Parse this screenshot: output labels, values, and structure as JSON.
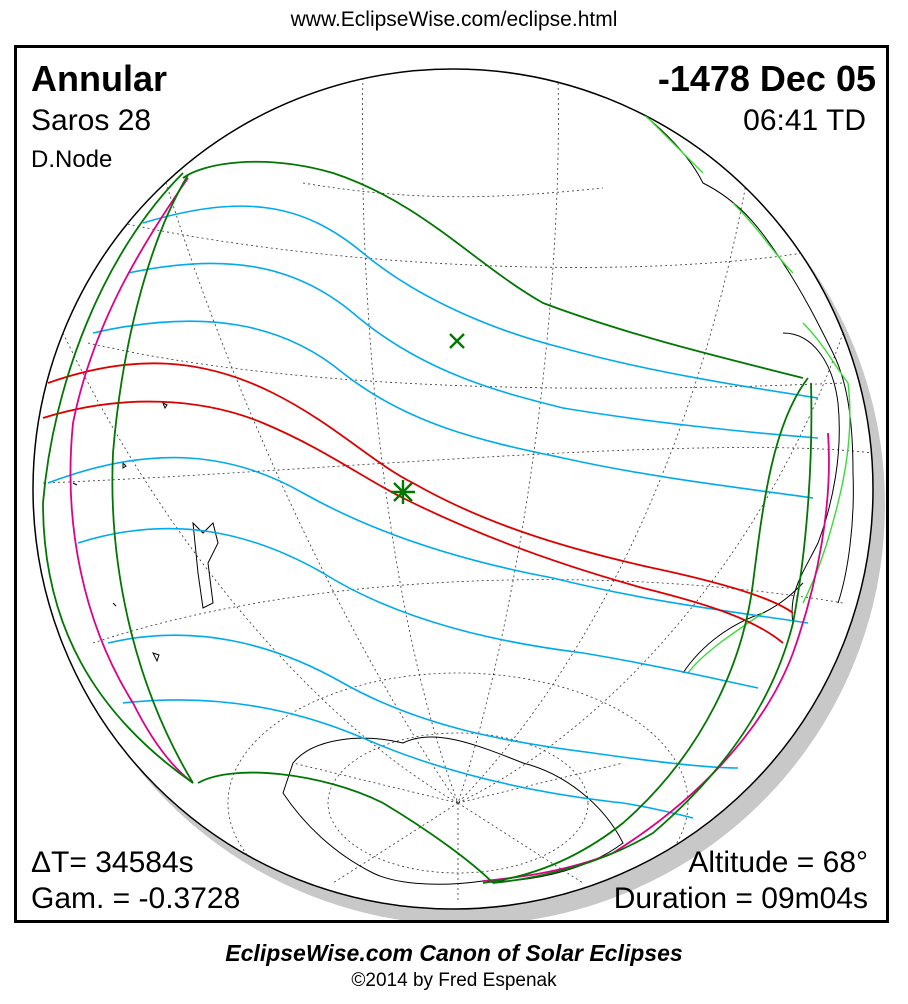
{
  "header": {
    "url": "www.EclipseWise.com/eclipse.html"
  },
  "eclipse": {
    "type": "Annular",
    "date": "-1478 Dec 05",
    "saros": "Saros  28",
    "time": "06:41 TD",
    "node": "D.Node",
    "delta_t": "ΔT=  34584s",
    "gamma": "Gam. = -0.3728",
    "altitude": "Altitude = 68°",
    "duration": "Duration = 09m04s"
  },
  "map": {
    "colors": {
      "central_path": "#dd0000",
      "penumbral_limits": "#00aaee",
      "outer_limits": "#007700",
      "rise_set": "#dd0088",
      "landmass_highlight": "#33dd33",
      "globe_shadow": "#c8c8c8"
    },
    "markers": [
      {
        "name": "greatest-eclipse-star",
        "symbol": "star"
      },
      {
        "name": "sub-solar-cross",
        "symbol": "x"
      }
    ]
  },
  "footer": {
    "title": "EclipseWise.com Canon of Solar Eclipses",
    "copyright": "©2014 by Fred Espenak"
  }
}
